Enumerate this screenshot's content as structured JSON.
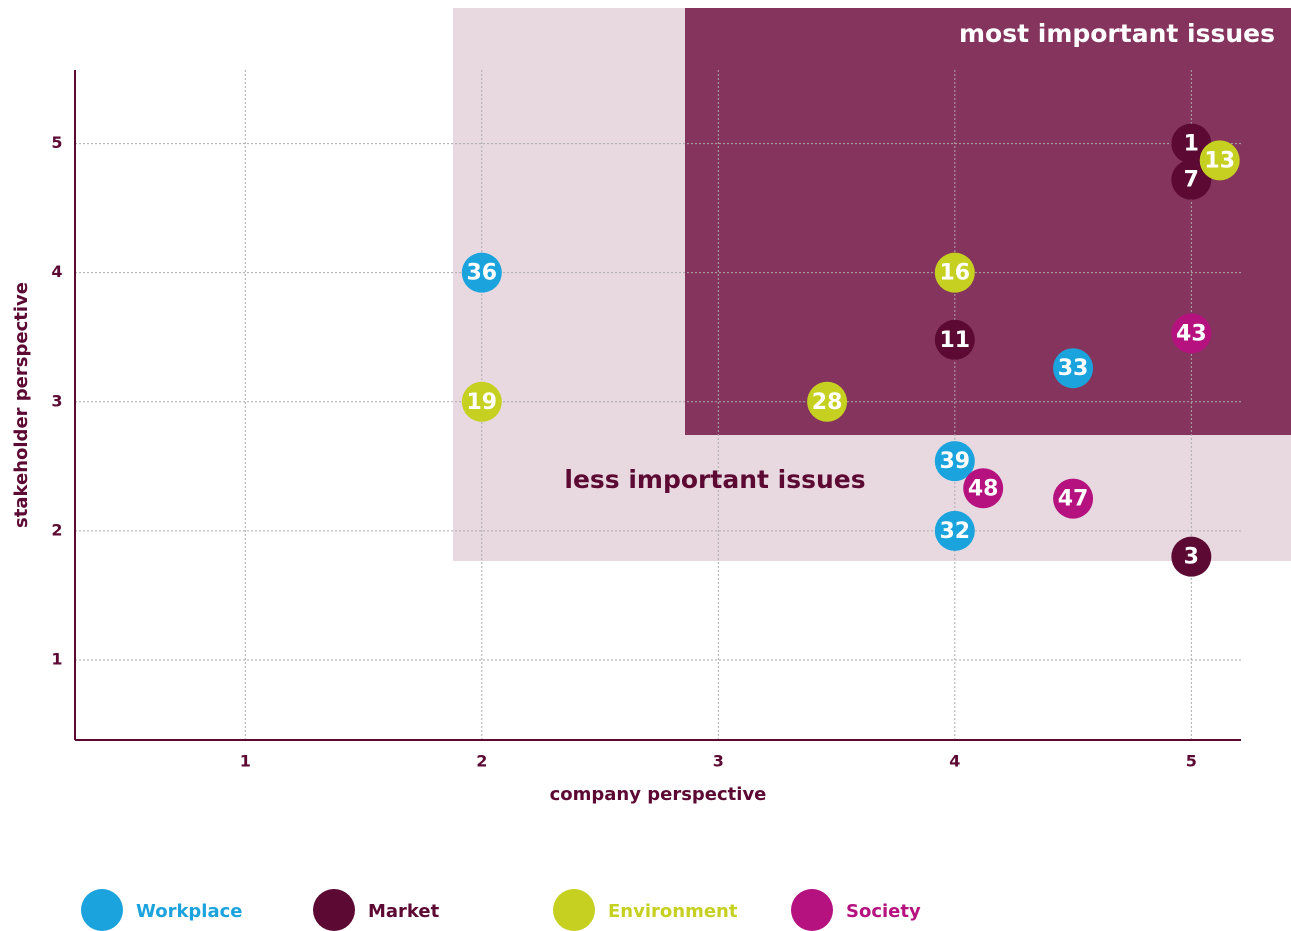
{
  "chart_data": {
    "type": "scatter",
    "xlabel": "company perspective",
    "ylabel": "stakeholder perspective",
    "xlim": [
      0.28,
      5.21
    ],
    "ylim": [
      0.38,
      5.57
    ],
    "xticks": [
      1,
      2,
      3,
      4,
      5
    ],
    "yticks": [
      1,
      2,
      3,
      4,
      5
    ],
    "grid": true,
    "annotations": [
      "most important issues",
      "less important issues"
    ],
    "series": [
      {
        "name": "Workplace",
        "color": "#1ba3dd",
        "labels": [
          "36",
          "33",
          "39",
          "32"
        ],
        "x": [
          2,
          4.5,
          4,
          4
        ],
        "values": [
          4,
          3.26,
          2.54,
          2
        ]
      },
      {
        "name": "Market",
        "color": "#5c0a33",
        "labels": [
          "1",
          "7",
          "11",
          "3"
        ],
        "x": [
          5,
          5,
          4,
          5
        ],
        "values": [
          5,
          4.72,
          3.48,
          1.8
        ]
      },
      {
        "name": "Environment",
        "color": "#c5d021",
        "labels": [
          "13",
          "16",
          "19",
          "28"
        ],
        "x": [
          5.12,
          4,
          2,
          3.46
        ],
        "values": [
          4.87,
          4,
          3,
          3
        ]
      },
      {
        "name": "Society",
        "color": "#b5127f",
        "labels": [
          "43",
          "48",
          "47"
        ],
        "x": [
          5,
          4.12,
          4.5
        ],
        "values": [
          3.53,
          2.33,
          2.25
        ]
      }
    ]
  }
}
